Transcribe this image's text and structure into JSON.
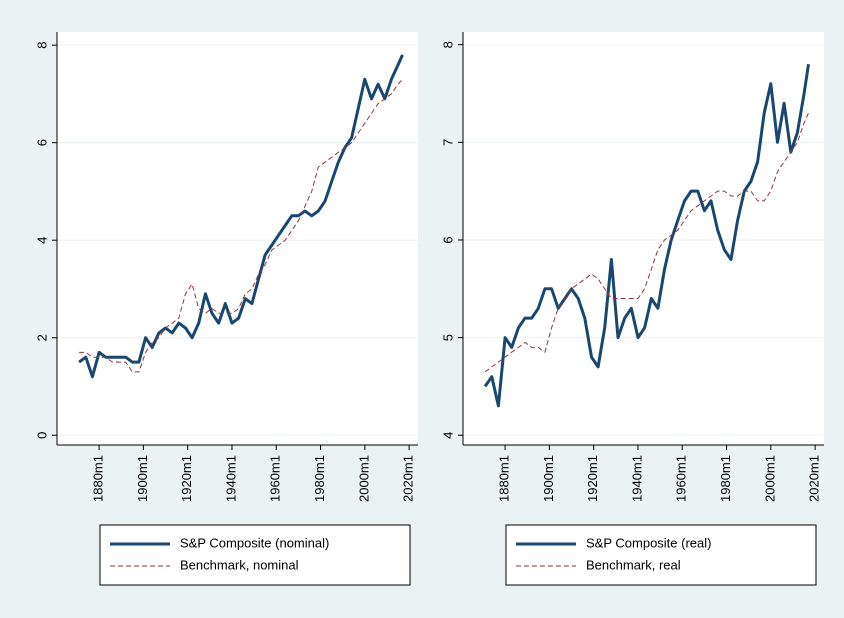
{
  "chart_data": [
    {
      "type": "line",
      "x": [
        1871,
        1874,
        1877,
        1880,
        1883,
        1886,
        1889,
        1892,
        1895,
        1898,
        1901,
        1904,
        1907,
        1910,
        1913,
        1916,
        1919,
        1922,
        1925,
        1928,
        1931,
        1934,
        1937,
        1940,
        1943,
        1946,
        1949,
        1952,
        1955,
        1958,
        1961,
        1964,
        1967,
        1970,
        1973,
        1976,
        1979,
        1982,
        1985,
        1988,
        1991,
        1994,
        1997,
        2000,
        2003,
        2006,
        2009,
        2012,
        2015,
        2017
      ],
      "xlim": [
        1861,
        2024
      ],
      "xticks": [
        {
          "value": 1880,
          "label": "1880m1"
        },
        {
          "value": 1900,
          "label": "1900m1"
        },
        {
          "value": 1920,
          "label": "1920m1"
        },
        {
          "value": 1940,
          "label": "1940m1"
        },
        {
          "value": 1960,
          "label": "1960m1"
        },
        {
          "value": 1980,
          "label": "1980m1"
        },
        {
          "value": 2000,
          "label": "2000m1"
        },
        {
          "value": 2020,
          "label": "2020m1"
        }
      ],
      "ylim": [
        -0.2,
        8.27
      ],
      "yticks": [
        0,
        2,
        4,
        6,
        8
      ],
      "grid": true,
      "legend": "bottom",
      "series": [
        {
          "name": "S&P Composite (nominal)",
          "color": "#1a476f",
          "style": "solid",
          "values": [
            1.5,
            1.6,
            1.2,
            1.7,
            1.6,
            1.6,
            1.6,
            1.6,
            1.5,
            1.5,
            2.0,
            1.8,
            2.1,
            2.2,
            2.1,
            2.3,
            2.2,
            2.0,
            2.3,
            2.9,
            2.5,
            2.3,
            2.7,
            2.3,
            2.4,
            2.8,
            2.7,
            3.2,
            3.7,
            3.9,
            4.1,
            4.3,
            4.5,
            4.5,
            4.6,
            4.5,
            4.6,
            4.8,
            5.2,
            5.6,
            5.9,
            6.1,
            6.7,
            7.3,
            6.9,
            7.2,
            6.9,
            7.3,
            7.6,
            7.8
          ]
        },
        {
          "name": "Benchmark, nominal",
          "color": "#90353b",
          "style": "dashed",
          "values": [
            1.7,
            1.7,
            1.6,
            1.6,
            1.6,
            1.5,
            1.5,
            1.5,
            1.3,
            1.3,
            1.7,
            1.9,
            2.0,
            2.2,
            2.3,
            2.4,
            2.9,
            3.1,
            2.6,
            2.5,
            2.6,
            2.5,
            2.5,
            2.5,
            2.6,
            2.9,
            3.0,
            3.3,
            3.5,
            3.8,
            3.9,
            4.0,
            4.2,
            4.4,
            4.7,
            5.0,
            5.5,
            5.6,
            5.7,
            5.8,
            5.9,
            6.0,
            6.2,
            6.4,
            6.6,
            6.8,
            6.9,
            7.0,
            7.2,
            7.3
          ]
        }
      ]
    },
    {
      "type": "line",
      "x": [
        1871,
        1874,
        1877,
        1880,
        1883,
        1886,
        1889,
        1892,
        1895,
        1898,
        1901,
        1904,
        1907,
        1910,
        1913,
        1916,
        1919,
        1922,
        1925,
        1928,
        1931,
        1934,
        1937,
        1940,
        1943,
        1946,
        1949,
        1952,
        1955,
        1958,
        1961,
        1964,
        1967,
        1970,
        1973,
        1976,
        1979,
        1982,
        1985,
        1988,
        1991,
        1994,
        1997,
        2000,
        2003,
        2006,
        2009,
        2012,
        2015,
        2017
      ],
      "xlim": [
        1861,
        2024
      ],
      "xticks": [
        {
          "value": 1880,
          "label": "1880m1"
        },
        {
          "value": 1900,
          "label": "1900m1"
        },
        {
          "value": 1920,
          "label": "1920m1"
        },
        {
          "value": 1940,
          "label": "1940m1"
        },
        {
          "value": 1960,
          "label": "1960m1"
        },
        {
          "value": 1980,
          "label": "1980m1"
        },
        {
          "value": 2000,
          "label": "2000m1"
        },
        {
          "value": 2020,
          "label": "2020m1"
        }
      ],
      "ylim": [
        3.9,
        8.13
      ],
      "yticks": [
        4,
        5,
        6,
        7,
        8
      ],
      "grid": true,
      "legend": "bottom",
      "series": [
        {
          "name": "S&P Composite (real)",
          "color": "#1a476f",
          "style": "solid",
          "values": [
            4.5,
            4.6,
            4.3,
            5.0,
            4.9,
            5.1,
            5.2,
            5.2,
            5.3,
            5.5,
            5.5,
            5.3,
            5.4,
            5.5,
            5.4,
            5.2,
            4.8,
            4.7,
            5.1,
            5.8,
            5.0,
            5.2,
            5.3,
            5.0,
            5.1,
            5.4,
            5.3,
            5.7,
            6.0,
            6.2,
            6.4,
            6.5,
            6.5,
            6.3,
            6.4,
            6.1,
            5.9,
            5.8,
            6.2,
            6.5,
            6.6,
            6.8,
            7.3,
            7.6,
            7.0,
            7.4,
            6.9,
            7.1,
            7.5,
            7.8
          ]
        },
        {
          "name": "Benchmark, real",
          "color": "#90353b",
          "style": "dashed",
          "values": [
            4.65,
            4.7,
            4.75,
            4.8,
            4.85,
            4.9,
            4.95,
            4.9,
            4.9,
            4.85,
            5.1,
            5.3,
            5.4,
            5.5,
            5.55,
            5.6,
            5.65,
            5.6,
            5.5,
            5.4,
            5.4,
            5.4,
            5.4,
            5.4,
            5.5,
            5.7,
            5.9,
            6.0,
            6.05,
            6.1,
            6.2,
            6.3,
            6.35,
            6.4,
            6.45,
            6.5,
            6.5,
            6.45,
            6.45,
            6.5,
            6.5,
            6.4,
            6.4,
            6.5,
            6.7,
            6.8,
            6.9,
            7.0,
            7.2,
            7.3
          ]
        }
      ]
    }
  ]
}
